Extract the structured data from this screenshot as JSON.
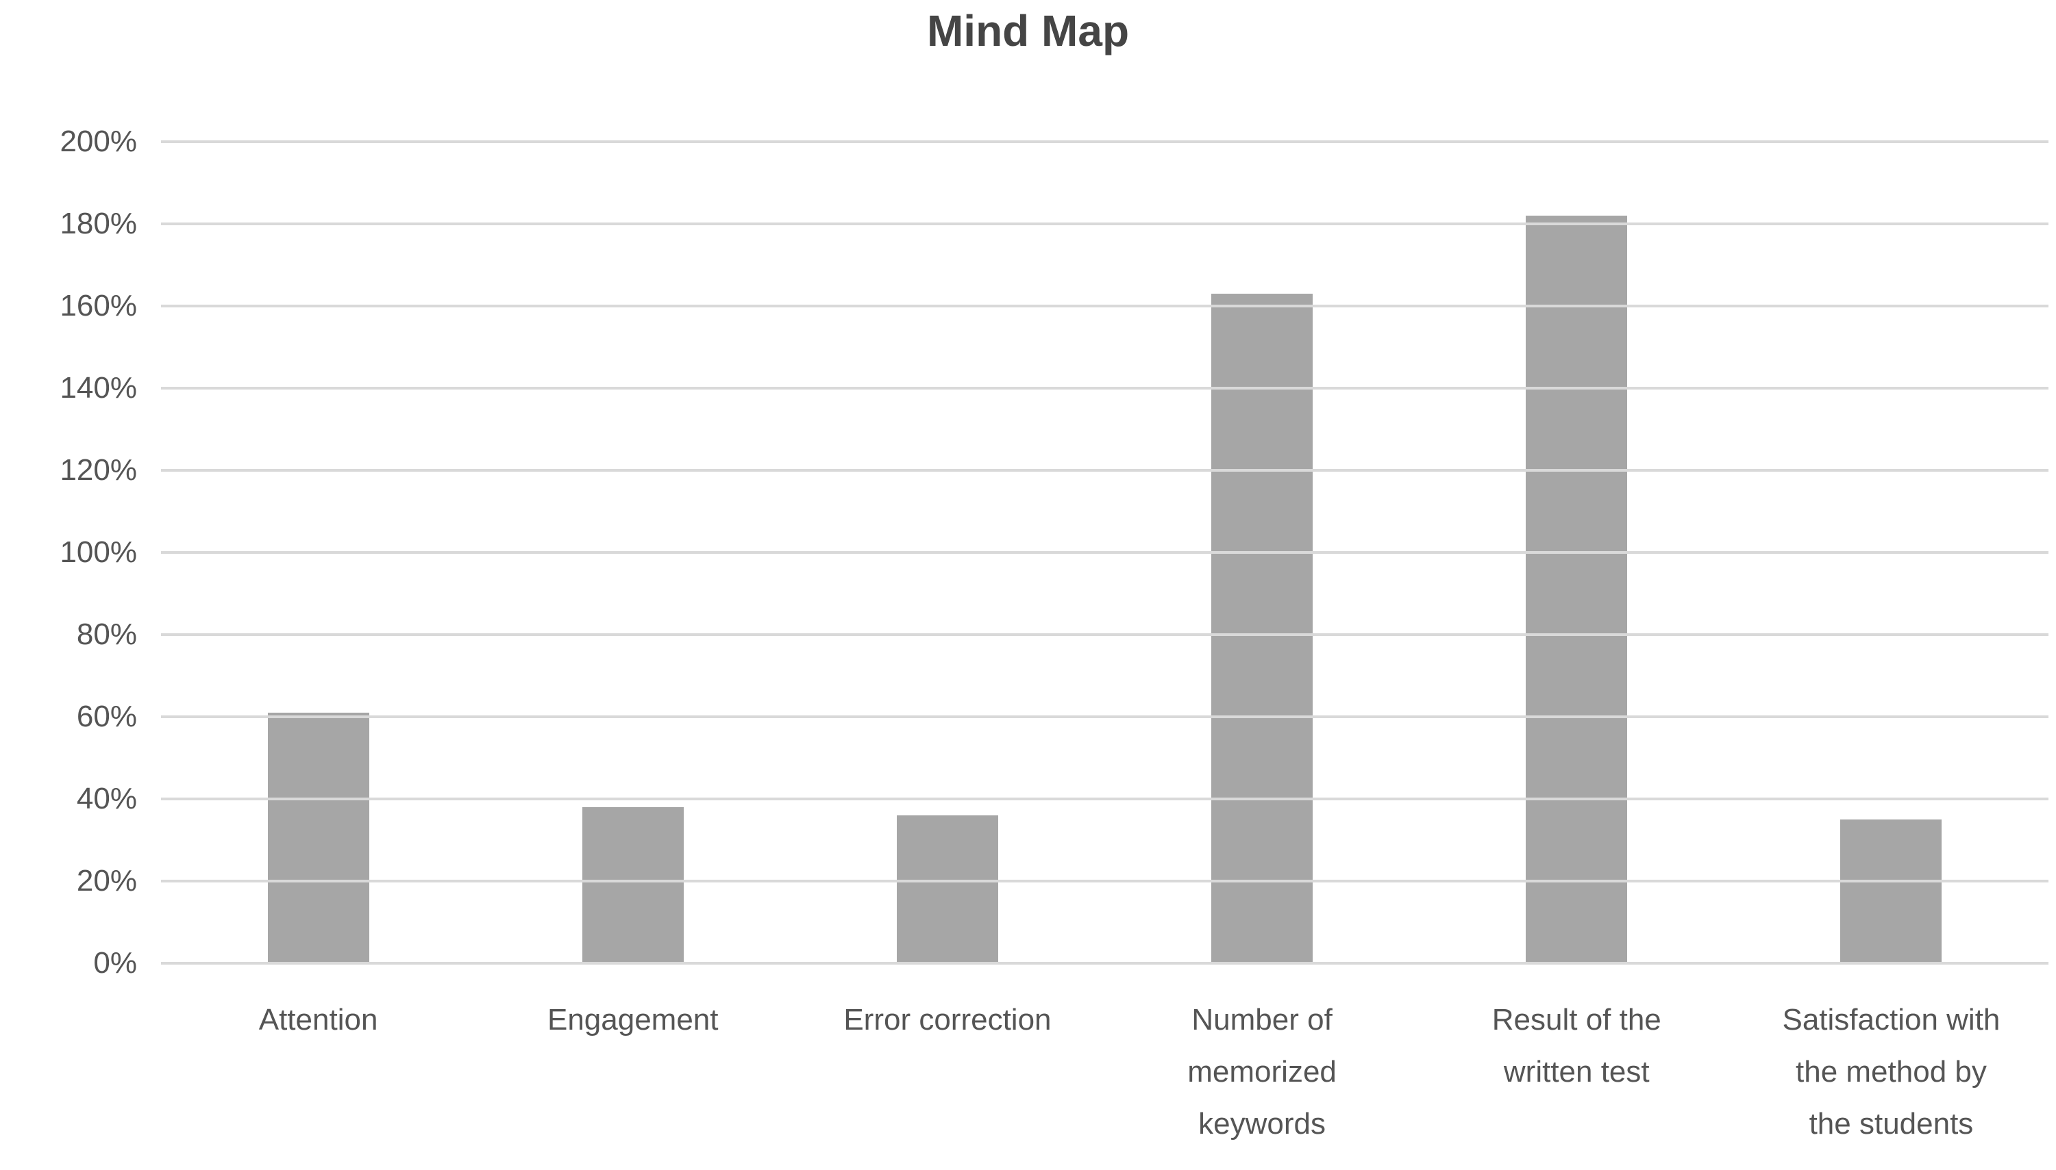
{
  "chart_data": {
    "type": "bar",
    "title": "Mind Map",
    "categories": [
      "Attention",
      "Engagement",
      "Error correction",
      "Number of\nmemorized\nkeywords",
      "Result of the\nwritten test",
      "Satisfaction with\nthe method by\nthe students"
    ],
    "values": [
      61,
      38,
      36,
      163,
      182,
      35
    ],
    "value_unit": "%",
    "ylim": [
      0,
      200
    ],
    "ytick_step": 20,
    "ytick_labels": [
      "0%",
      "20%",
      "40%",
      "60%",
      "80%",
      "100%",
      "120%",
      "140%",
      "160%",
      "180%",
      "200%"
    ],
    "xlabel": "",
    "ylabel": "",
    "grid": "horizontal",
    "legend": "none",
    "bar_color": "#a6a6a6",
    "gridline_color": "#d9d9d9",
    "axis_text_color": "#555555",
    "title_color": "#454545"
  }
}
